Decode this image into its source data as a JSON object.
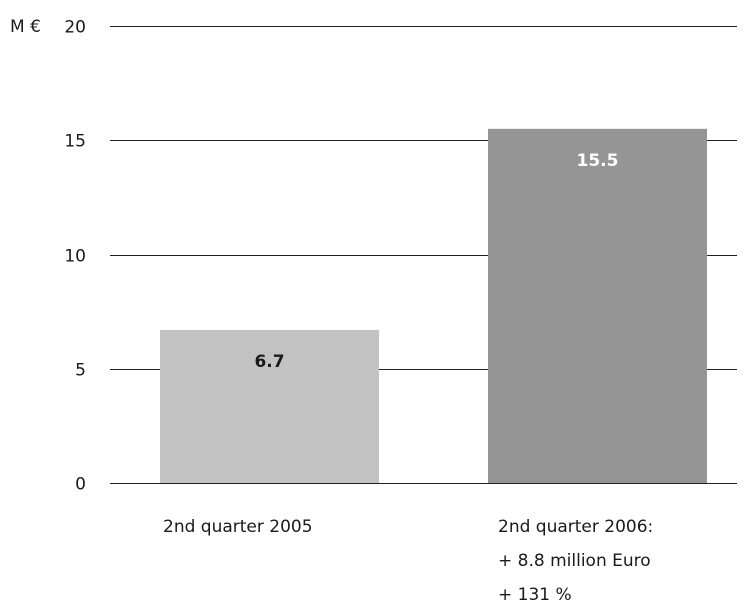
{
  "chart_data": {
    "type": "bar",
    "unit_label": "M €",
    "categories": [
      [
        "2nd quarter 2005"
      ],
      [
        "2nd quarter 2006:",
        "+ 8.8 million Euro",
        "+ 131 %"
      ]
    ],
    "values": [
      6.7,
      15.5
    ],
    "value_labels": [
      "6.7",
      "15.5"
    ],
    "ylim": [
      0,
      20
    ],
    "yticks": [
      0,
      5,
      10,
      15,
      20
    ],
    "grid": true,
    "colors": [
      "#c2c2c2",
      "#959595"
    ],
    "value_label_colors": [
      "#1a1a1a",
      "#ffffff"
    ]
  }
}
